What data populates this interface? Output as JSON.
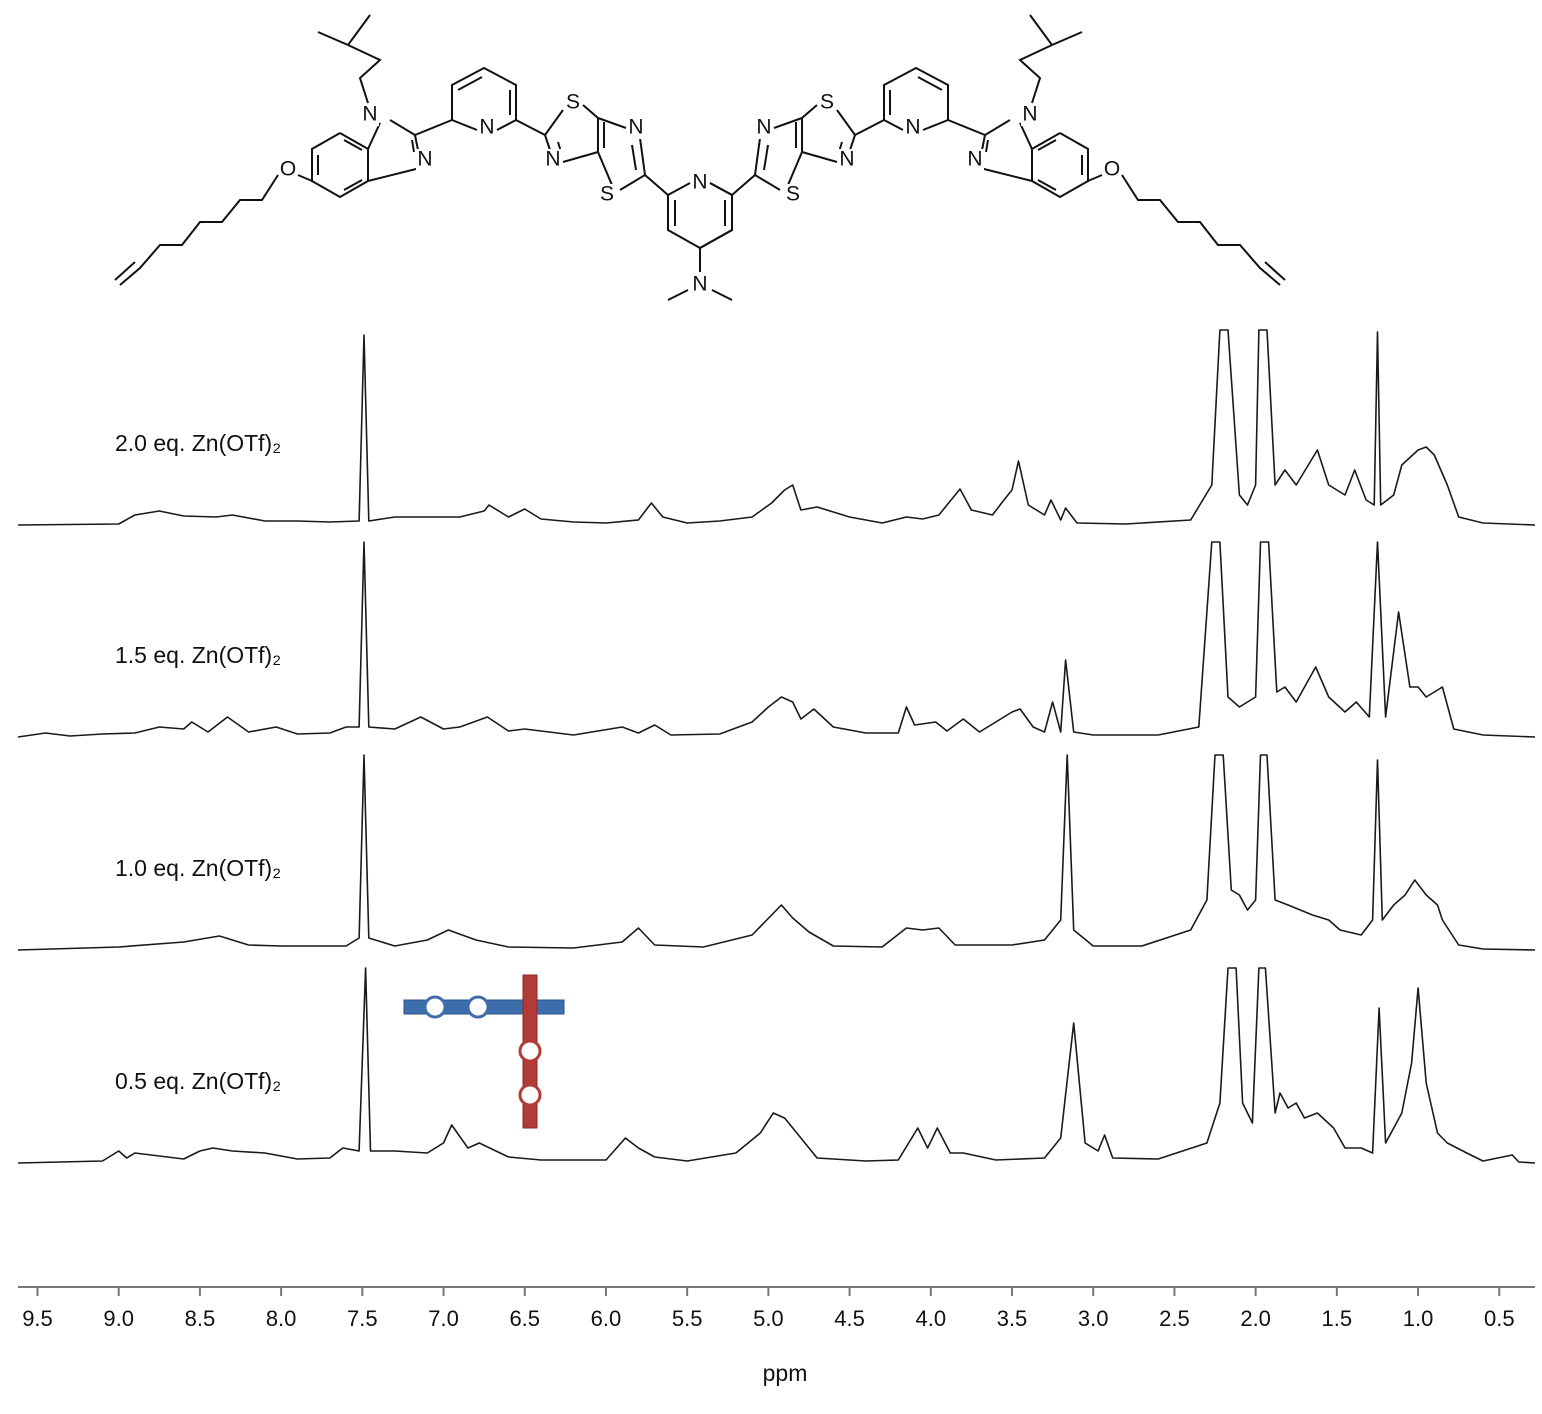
{
  "structure": {
    "atom_labels": [
      "O",
      "N",
      "N",
      "N",
      "S",
      "N",
      "N",
      "S",
      "N",
      "N",
      "S",
      "N",
      "N",
      "S",
      "N",
      "N",
      "N",
      "O"
    ]
  },
  "chart_data": {
    "type": "line",
    "x_label": "ppm",
    "xlim": [
      9.62,
      0.28
    ],
    "ylim": [
      0,
      200
    ],
    "xticks": [
      9.5,
      {
        "value": 9,
        "label": "9.0"
      },
      8.5,
      {
        "value": 8,
        "label": "8.0"
      },
      7.5,
      {
        "value": 7,
        "label": "7.0"
      },
      6.5,
      {
        "value": 6,
        "label": "6.0"
      },
      5.5,
      {
        "value": 5,
        "label": "5.0"
      },
      4.5,
      {
        "value": 4,
        "label": "4.0"
      },
      3.5,
      {
        "value": 3,
        "label": "3.0"
      },
      2.5,
      {
        "value": 2,
        "label": "2.0"
      },
      1.5,
      {
        "value": 1,
        "label": "1.0"
      },
      0.5
    ],
    "series": [
      {
        "name": "2.0 eq. Zn(OTf)₂",
        "color": "#1a1a1a",
        "x": [
          9.62,
          9.0,
          8.9,
          8.75,
          8.6,
          8.4,
          8.3,
          8.1,
          7.9,
          7.7,
          7.52,
          7.49,
          7.46,
          7.3,
          7.1,
          6.9,
          6.75,
          6.72,
          6.6,
          6.5,
          6.4,
          6.2,
          6.0,
          5.8,
          5.72,
          5.65,
          5.5,
          5.3,
          5.1,
          4.98,
          4.9,
          4.85,
          4.8,
          4.7,
          4.5,
          4.3,
          4.15,
          4.05,
          3.95,
          3.82,
          3.75,
          3.62,
          3.55,
          3.5,
          3.46,
          3.4,
          3.3,
          3.26,
          3.2,
          3.17,
          3.1,
          2.8,
          2.4,
          2.27,
          2.22,
          2.17,
          2.1,
          2.05,
          2.0,
          1.98,
          1.93,
          1.88,
          1.82,
          1.75,
          1.62,
          1.55,
          1.45,
          1.39,
          1.32,
          1.27,
          1.25,
          1.23,
          1.15,
          1.1,
          1.0,
          0.95,
          0.9,
          0.82,
          0.75,
          0.6,
          0.28
        ],
        "values": [
          0,
          1,
          10,
          14,
          9,
          8,
          10,
          4,
          4,
          3,
          4,
          190,
          4,
          8,
          8,
          8,
          14,
          20,
          8,
          16,
          6,
          3,
          2,
          5,
          22,
          8,
          2,
          4,
          8,
          22,
          35,
          40,
          15,
          18,
          8,
          2,
          8,
          6,
          10,
          36,
          15,
          10,
          25,
          35,
          64,
          20,
          10,
          25,
          5,
          17,
          2,
          1,
          5,
          40,
          195,
          195,
          30,
          20,
          40,
          195,
          195,
          40,
          55,
          40,
          75,
          40,
          30,
          55,
          25,
          20,
          193,
          20,
          30,
          60,
          75,
          78,
          70,
          40,
          8,
          2,
          0
        ]
      },
      {
        "name": "1.5 eq. Zn(OTf)₂",
        "color": "#1a1a1a",
        "x": [
          9.62,
          9.45,
          9.3,
          9.1,
          8.9,
          8.75,
          8.6,
          8.55,
          8.45,
          8.33,
          8.2,
          8.03,
          7.9,
          7.7,
          7.6,
          7.52,
          7.49,
          7.46,
          7.3,
          7.14,
          7.0,
          6.9,
          6.73,
          6.6,
          6.5,
          6.2,
          5.9,
          5.8,
          5.7,
          5.6,
          5.3,
          5.1,
          5.0,
          4.92,
          4.85,
          4.8,
          4.72,
          4.6,
          4.4,
          4.2,
          4.15,
          4.1,
          3.97,
          3.9,
          3.8,
          3.7,
          3.6,
          3.5,
          3.45,
          3.37,
          3.3,
          3.25,
          3.2,
          3.17,
          3.12,
          3.0,
          2.6,
          2.35,
          2.27,
          2.22,
          2.17,
          2.1,
          2.05,
          2.0,
          1.97,
          1.92,
          1.87,
          1.82,
          1.75,
          1.63,
          1.55,
          1.45,
          1.38,
          1.3,
          1.25,
          1.2,
          1.12,
          1.05,
          1.0,
          0.95,
          0.85,
          0.78,
          0.6,
          0.28
        ],
        "values": [
          0,
          4,
          1,
          3,
          4,
          10,
          8,
          15,
          5,
          20,
          5,
          10,
          3,
          4,
          10,
          10,
          195,
          10,
          8,
          20,
          8,
          10,
          20,
          6,
          8,
          2,
          10,
          4,
          12,
          2,
          3,
          15,
          30,
          40,
          35,
          18,
          28,
          10,
          4,
          4,
          30,
          12,
          15,
          6,
          18,
          5,
          15,
          25,
          28,
          10,
          5,
          35,
          5,
          77,
          5,
          2,
          2,
          10,
          195,
          195,
          40,
          30,
          35,
          40,
          195,
          195,
          45,
          50,
          35,
          70,
          40,
          25,
          35,
          20,
          195,
          20,
          125,
          50,
          50,
          40,
          50,
          8,
          2,
          0
        ]
      },
      {
        "name": "1.0 eq. Zn(OTf)₂",
        "color": "#1a1a1a",
        "x": [
          9.62,
          9.0,
          8.6,
          8.38,
          8.2,
          8.0,
          7.6,
          7.52,
          7.49,
          7.46,
          7.3,
          7.1,
          6.97,
          6.8,
          6.6,
          6.2,
          5.9,
          5.8,
          5.7,
          5.4,
          5.1,
          4.98,
          4.92,
          4.85,
          4.75,
          4.6,
          4.3,
          4.15,
          4.05,
          3.95,
          3.85,
          3.5,
          3.3,
          3.2,
          3.16,
          3.12,
          3.0,
          2.7,
          2.4,
          2.3,
          2.25,
          2.2,
          2.15,
          2.1,
          2.05,
          2.0,
          1.97,
          1.93,
          1.88,
          1.8,
          1.65,
          1.55,
          1.48,
          1.35,
          1.28,
          1.25,
          1.22,
          1.15,
          1.08,
          1.02,
          0.95,
          0.88,
          0.85,
          0.75,
          0.6,
          0.28
        ],
        "values": [
          0,
          3,
          8,
          14,
          5,
          4,
          4,
          12,
          195,
          12,
          4,
          10,
          20,
          10,
          3,
          2,
          8,
          22,
          5,
          3,
          15,
          35,
          45,
          32,
          18,
          4,
          3,
          22,
          20,
          22,
          5,
          5,
          10,
          30,
          195,
          20,
          4,
          4,
          20,
          50,
          195,
          195,
          60,
          55,
          40,
          50,
          195,
          195,
          50,
          45,
          35,
          30,
          20,
          15,
          30,
          190,
          30,
          45,
          55,
          70,
          55,
          45,
          30,
          5,
          1,
          0
        ]
      },
      {
        "name": "0.5 eq. Zn(OTf)₂",
        "color": "#1a1a1a",
        "x": [
          9.62,
          9.1,
          9.0,
          8.95,
          8.9,
          8.6,
          8.5,
          8.42,
          8.3,
          8.1,
          7.9,
          7.7,
          7.62,
          7.52,
          7.48,
          7.45,
          7.3,
          7.1,
          7.0,
          6.95,
          6.85,
          6.78,
          6.6,
          6.4,
          6.0,
          5.88,
          5.8,
          5.7,
          5.5,
          5.2,
          5.05,
          4.97,
          4.9,
          4.8,
          4.7,
          4.4,
          4.2,
          4.08,
          4.02,
          3.96,
          3.88,
          3.8,
          3.6,
          3.3,
          3.2,
          3.12,
          3.05,
          2.97,
          2.93,
          2.88,
          2.6,
          2.3,
          2.22,
          2.17,
          2.12,
          2.08,
          2.02,
          1.98,
          1.94,
          1.88,
          1.85,
          1.8,
          1.75,
          1.7,
          1.62,
          1.52,
          1.45,
          1.35,
          1.28,
          1.24,
          1.2,
          1.1,
          1.04,
          1.0,
          0.95,
          0.88,
          0.82,
          0.7,
          0.6,
          0.42,
          0.38,
          0.28
        ],
        "values": [
          0,
          2,
          12,
          5,
          10,
          4,
          12,
          15,
          12,
          10,
          4,
          5,
          15,
          12,
          195,
          12,
          12,
          10,
          20,
          38,
          15,
          20,
          6,
          3,
          3,
          25,
          15,
          6,
          2,
          10,
          30,
          50,
          45,
          25,
          5,
          2,
          3,
          35,
          15,
          35,
          10,
          10,
          3,
          5,
          25,
          140,
          20,
          12,
          28,
          5,
          4,
          20,
          60,
          195,
          195,
          60,
          40,
          195,
          195,
          50,
          70,
          55,
          60,
          45,
          50,
          35,
          15,
          15,
          10,
          155,
          20,
          50,
          100,
          175,
          80,
          30,
          20,
          10,
          2,
          8,
          1,
          0
        ]
      }
    ]
  }
}
